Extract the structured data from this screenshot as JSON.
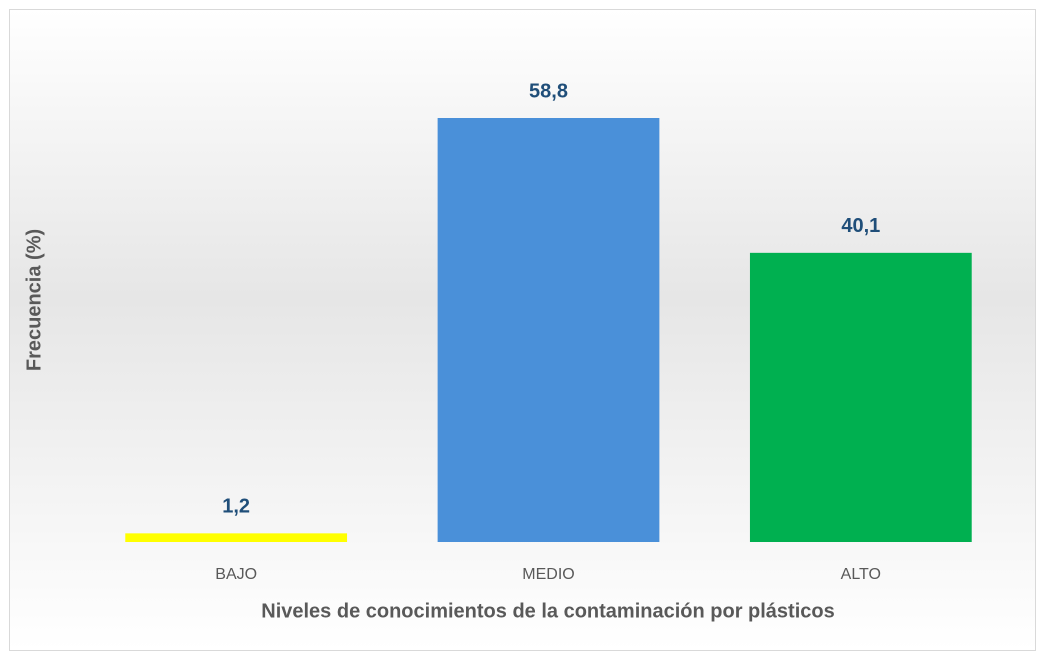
{
  "chart_data": {
    "type": "bar",
    "x_label": "Niveles de conocimientos de la contaminación por plásticos",
    "y_label": "Frecuencia (%)",
    "categories": [
      "BAJO",
      "MEDIO",
      "ALTO"
    ],
    "values": [
      1.2,
      58.8,
      40.1
    ],
    "value_labels": [
      "1,2",
      "58,8",
      "40,1"
    ],
    "colors": [
      "#ffff00",
      "#4a90d9",
      "#00b050"
    ]
  }
}
